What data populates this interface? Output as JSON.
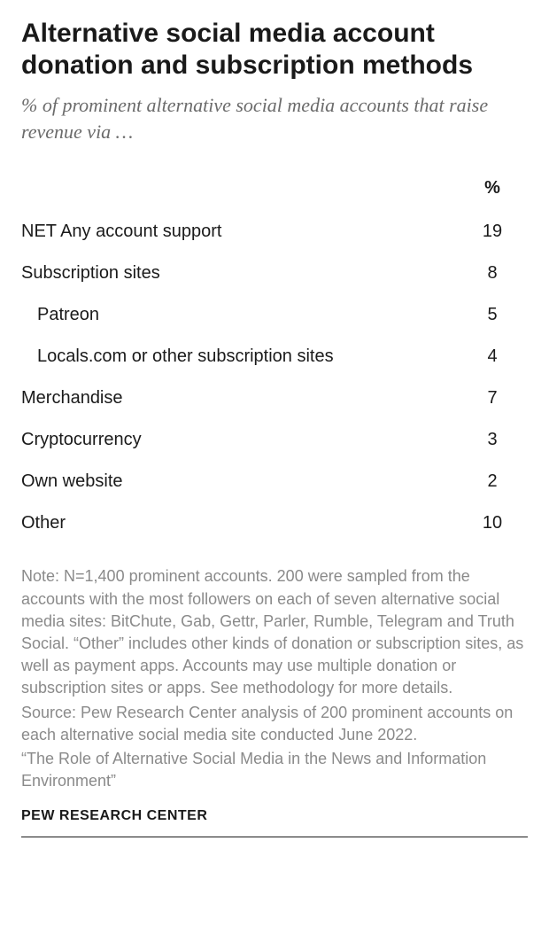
{
  "title": "Alternative social media account donation and subscription methods",
  "subtitle": "% of prominent alternative social media accounts that raise revenue via …",
  "table": {
    "header_label": "",
    "header_value": "%",
    "rows": [
      {
        "label": "NET Any account support",
        "value": "19",
        "indent": 0
      },
      {
        "label": "Subscription sites",
        "value": "8",
        "indent": 0
      },
      {
        "label": "Patreon",
        "value": "5",
        "indent": 1
      },
      {
        "label": "Locals.com or other subscription sites",
        "value": "4",
        "indent": 1
      },
      {
        "label": "Merchandise",
        "value": "7",
        "indent": 0
      },
      {
        "label": "Cryptocurrency",
        "value": "3",
        "indent": 0
      },
      {
        "label": "Own website",
        "value": "2",
        "indent": 0
      },
      {
        "label": "Other",
        "value": "10",
        "indent": 0
      }
    ]
  },
  "note": "Note: N=1,400 prominent accounts. 200 were sampled from the accounts with the most followers on each of seven alternative social media sites: BitChute, Gab, Gettr, Parler, Rumble, Telegram and Truth Social. “Other” includes other kinds of donation or subscription sites, as well as payment apps. Accounts may use multiple donation or subscription sites or apps. See methodology for more details.",
  "source": "Source: Pew Research Center analysis of 200 prominent accounts on each alternative social media site conducted June 2022.",
  "report_title": "“The Role of Alternative Social Media in the News and Information Environment”",
  "attribution": "PEW RESEARCH CENTER",
  "style": {
    "title_fontsize": 30,
    "subtitle_fontsize": 22,
    "row_fontsize": 20,
    "note_fontsize": 18,
    "attribution_fontsize": 16,
    "text_color": "#1a1a1a",
    "muted_color": "#8a8a8a",
    "subtitle_color": "#6b6b6b",
    "background": "#ffffff"
  }
}
